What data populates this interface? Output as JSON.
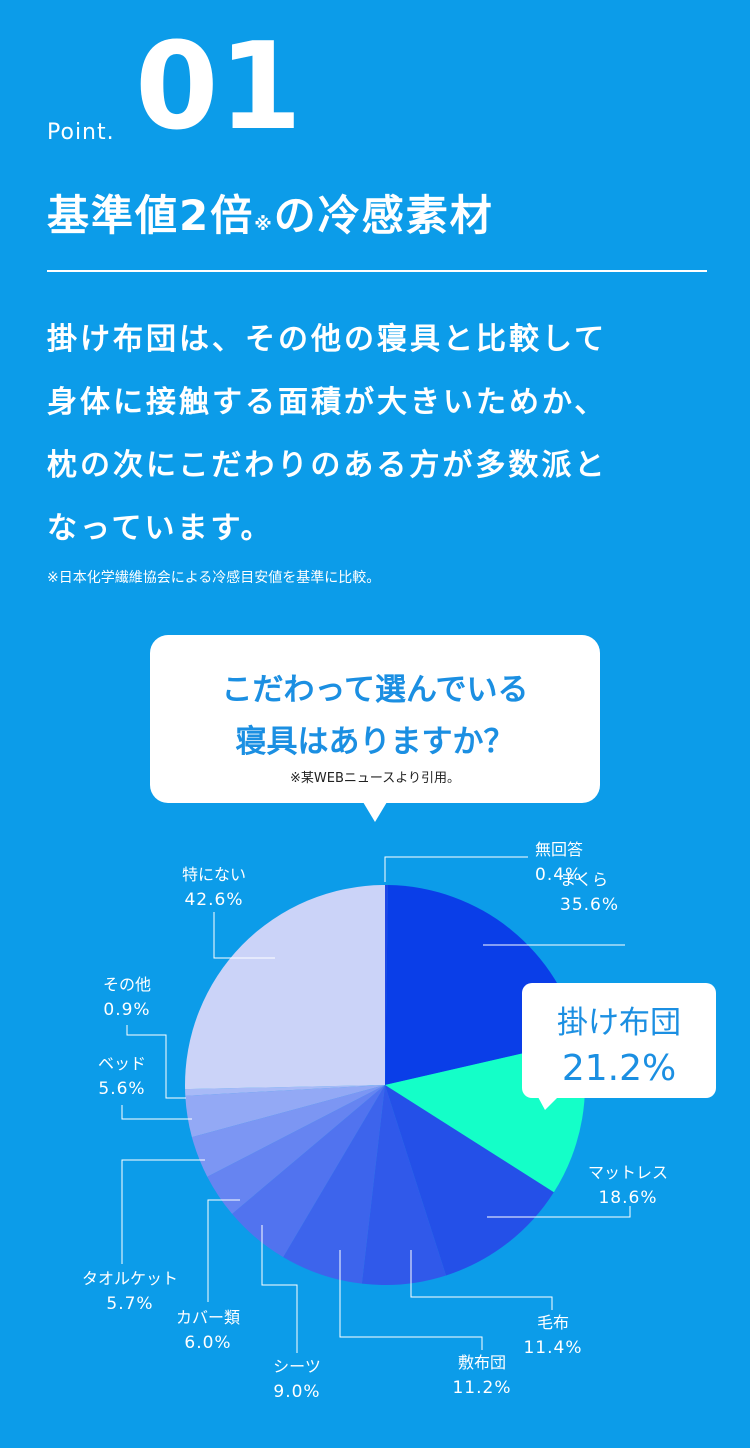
{
  "header": {
    "point": "Point.",
    "number": "01",
    "title": "基準値2倍",
    "mark": "※",
    "title_rest": "の冷感素材"
  },
  "body": {
    "lines": [
      "掛け布団は、その他の寝具と比較して",
      "身体に接触する面積が大きいためか、",
      "枕の次にこだわりのある方が多数派と",
      "なっています。"
    ],
    "note": "※日本化学繊維協会による冷感目安値を基準に比較。"
  },
  "chart_data": {
    "type": "pie",
    "title": [
      "こだわって選んでいる",
      "寝具はありますか？"
    ],
    "source": "※某WEBニュースより引用。",
    "categories": [
      "無回答",
      "まくら",
      "掛け布団",
      "マットレス",
      "毛布",
      "敷布団",
      "シーツ",
      "カバー類",
      "タオルケット",
      "ベッド",
      "その他",
      "特にない"
    ],
    "values": [
      0.4,
      35.6,
      21.2,
      18.6,
      11.4,
      11.2,
      9,
      6,
      5.7,
      5.6,
      0.9,
      42.6
    ],
    "value_labels": [
      "0.4%",
      "35.6%",
      "21.2%",
      "18.6%",
      "11.4%",
      "11.2%",
      "9.0%",
      "6.0%",
      "5.7%",
      "5.6%",
      "0.9%",
      "42.6%"
    ],
    "colors": [
      "#1e46e6",
      "#0a3ee8",
      "#14ffc8",
      "#2450e8",
      "#3059ea",
      "#3d64ec",
      "#5173ef",
      "#6684f1",
      "#7c96f3",
      "#93a9f5",
      "#a8baf7",
      "#cbd3f8"
    ],
    "highlight": 2
  }
}
